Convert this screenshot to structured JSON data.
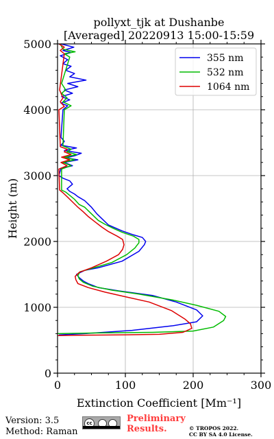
{
  "chart_data": {
    "type": "line",
    "title": "pollyxt_tjk at Dushanbe",
    "subtitle": "[Averaged] 20220913 15:00-15:59",
    "xlabel": "Extinction Coefficient [Mm⁻¹]",
    "ylabel": "Height (m)",
    "xlim": [
      0,
      300
    ],
    "ylim": [
      0,
      5000
    ],
    "xticks": [
      0,
      100,
      200,
      300
    ],
    "yticks": [
      0,
      1000,
      2000,
      3000,
      4000,
      5000
    ],
    "grid": true,
    "legend_position": "top-right",
    "series": [
      {
        "name": "355 nm",
        "color": "#0000ee",
        "points": [
          [
            2,
            580
          ],
          [
            40,
            600
          ],
          [
            110,
            650
          ],
          [
            170,
            720
          ],
          [
            205,
            780
          ],
          [
            214,
            870
          ],
          [
            205,
            960
          ],
          [
            175,
            1080
          ],
          [
            140,
            1180
          ],
          [
            90,
            1250
          ],
          [
            60,
            1300
          ],
          [
            45,
            1360
          ],
          [
            38,
            1400
          ],
          [
            32,
            1450
          ],
          [
            28,
            1500
          ],
          [
            40,
            1560
          ],
          [
            60,
            1600
          ],
          [
            95,
            1700
          ],
          [
            120,
            1850
          ],
          [
            128,
            1950
          ],
          [
            130,
            2000
          ],
          [
            125,
            2060
          ],
          [
            112,
            2100
          ],
          [
            95,
            2160
          ],
          [
            75,
            2250
          ],
          [
            65,
            2350
          ],
          [
            58,
            2420
          ],
          [
            50,
            2520
          ],
          [
            40,
            2620
          ],
          [
            30,
            2680
          ],
          [
            25,
            2720
          ],
          [
            18,
            2760
          ],
          [
            14,
            2800
          ],
          [
            22,
            2870
          ],
          [
            18,
            2920
          ],
          [
            8,
            2960
          ],
          [
            2,
            3000
          ],
          [
            5,
            3110
          ],
          [
            22,
            3150
          ],
          [
            10,
            3200
          ],
          [
            30,
            3240
          ],
          [
            12,
            3270
          ],
          [
            25,
            3300
          ],
          [
            35,
            3340
          ],
          [
            10,
            3380
          ],
          [
            28,
            3420
          ],
          [
            5,
            3460
          ],
          [
            10,
            3520
          ],
          [
            5,
            3580
          ],
          [
            8,
            4000
          ],
          [
            15,
            4060
          ],
          [
            5,
            4100
          ],
          [
            18,
            4150
          ],
          [
            6,
            4200
          ],
          [
            22,
            4250
          ],
          [
            10,
            4300
          ],
          [
            30,
            4350
          ],
          [
            15,
            4400
          ],
          [
            42,
            4450
          ],
          [
            18,
            4500
          ],
          [
            25,
            4550
          ],
          [
            12,
            4600
          ],
          [
            20,
            4660
          ],
          [
            8,
            4700
          ],
          [
            15,
            4760
          ],
          [
            4,
            4820
          ],
          [
            20,
            4870
          ],
          [
            8,
            4900
          ],
          [
            24,
            4950
          ],
          [
            5,
            5000
          ]
        ]
      },
      {
        "name": "532 nm",
        "color": "#00bb00",
        "points": [
          [
            0,
            600
          ],
          [
            60,
            610
          ],
          [
            140,
            620
          ],
          [
            200,
            640
          ],
          [
            230,
            700
          ],
          [
            245,
            800
          ],
          [
            248,
            860
          ],
          [
            238,
            940
          ],
          [
            205,
            1030
          ],
          [
            170,
            1110
          ],
          [
            120,
            1200
          ],
          [
            80,
            1260
          ],
          [
            52,
            1320
          ],
          [
            38,
            1380
          ],
          [
            32,
            1430
          ],
          [
            30,
            1480
          ],
          [
            33,
            1540
          ],
          [
            50,
            1590
          ],
          [
            80,
            1680
          ],
          [
            102,
            1800
          ],
          [
            114,
            1900
          ],
          [
            120,
            1980
          ],
          [
            120,
            2030
          ],
          [
            112,
            2080
          ],
          [
            95,
            2140
          ],
          [
            82,
            2200
          ],
          [
            70,
            2260
          ],
          [
            60,
            2320
          ],
          [
            50,
            2420
          ],
          [
            40,
            2520
          ],
          [
            32,
            2560
          ],
          [
            25,
            2640
          ],
          [
            18,
            2700
          ],
          [
            12,
            2750
          ],
          [
            6,
            2780
          ],
          [
            6,
            3100
          ],
          [
            20,
            3150
          ],
          [
            8,
            3200
          ],
          [
            25,
            3240
          ],
          [
            10,
            3280
          ],
          [
            28,
            3320
          ],
          [
            14,
            3360
          ],
          [
            20,
            3400
          ],
          [
            8,
            3450
          ],
          [
            10,
            4000
          ],
          [
            20,
            4060
          ],
          [
            8,
            4120
          ],
          [
            14,
            4180
          ],
          [
            6,
            4250
          ],
          [
            12,
            4300
          ],
          [
            6,
            4400
          ],
          [
            18,
            4800
          ],
          [
            10,
            4850
          ],
          [
            26,
            4880
          ],
          [
            8,
            4920
          ],
          [
            4,
            5000
          ]
        ]
      },
      {
        "name": "1064 nm",
        "color": "#dd0000",
        "points": [
          [
            0,
            570
          ],
          [
            30,
            575
          ],
          [
            100,
            582
          ],
          [
            150,
            590
          ],
          [
            185,
            620
          ],
          [
            198,
            680
          ],
          [
            196,
            750
          ],
          [
            188,
            820
          ],
          [
            168,
            950
          ],
          [
            135,
            1080
          ],
          [
            100,
            1160
          ],
          [
            70,
            1230
          ],
          [
            45,
            1300
          ],
          [
            30,
            1360
          ],
          [
            27,
            1420
          ],
          [
            26,
            1470
          ],
          [
            32,
            1530
          ],
          [
            50,
            1600
          ],
          [
            72,
            1700
          ],
          [
            90,
            1800
          ],
          [
            96,
            1880
          ],
          [
            98,
            1950
          ],
          [
            96,
            2030
          ],
          [
            88,
            2080
          ],
          [
            75,
            2150
          ],
          [
            65,
            2220
          ],
          [
            55,
            2300
          ],
          [
            45,
            2380
          ],
          [
            38,
            2450
          ],
          [
            30,
            2520
          ],
          [
            22,
            2600
          ],
          [
            14,
            2680
          ],
          [
            8,
            2740
          ],
          [
            3,
            2780
          ],
          [
            2,
            3100
          ],
          [
            14,
            3150
          ],
          [
            5,
            3200
          ],
          [
            18,
            3240
          ],
          [
            6,
            3280
          ],
          [
            20,
            3320
          ],
          [
            10,
            3360
          ],
          [
            14,
            3400
          ],
          [
            4,
            3440
          ],
          [
            2,
            4000
          ],
          [
            10,
            4050
          ],
          [
            4,
            4120
          ],
          [
            8,
            4180
          ],
          [
            3,
            4300
          ],
          [
            10,
            4850
          ],
          [
            4,
            4900
          ],
          [
            10,
            4950
          ],
          [
            2,
            5000
          ]
        ]
      }
    ]
  },
  "footer": {
    "version": "Version: 3.5",
    "method": "Method: Raman",
    "preliminary_line1": "Preliminary",
    "preliminary_line2": "Results.",
    "copyright_line1": "© TROPOS 2022.",
    "copyright_line2": "CC BY SA 4.0 License.",
    "cc_badge_text": "cc"
  }
}
